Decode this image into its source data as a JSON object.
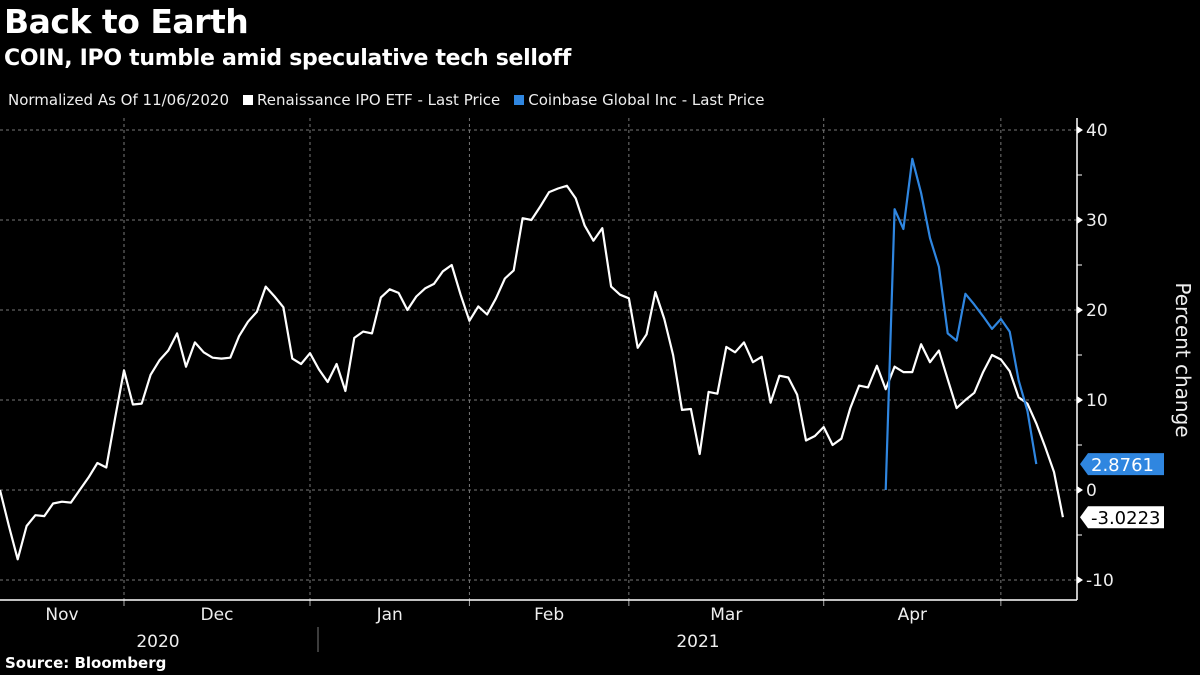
{
  "header": {
    "title": "Back to Earth",
    "subtitle": "COIN, IPO tumble amid speculative tech selloff"
  },
  "legend": {
    "note": "Normalized As Of 11/06/2020",
    "items": [
      {
        "label": "Renaissance IPO ETF - Last Price",
        "color": "#ffffff"
      },
      {
        "label": "Coinbase Global Inc - Last Price",
        "color": "#2f86e0"
      }
    ]
  },
  "source": "Source: Bloomberg",
  "chart_data": {
    "type": "line",
    "title": "Back to Earth",
    "subtitle": "COIN, IPO tumble amid speculative tech selloff",
    "xlabel": "",
    "ylabel": "Percent change",
    "ylim": [
      -12,
      42
    ],
    "yticks": [
      40,
      30,
      20,
      10,
      0,
      -10
    ],
    "grid": true,
    "legend_position": "top-left",
    "x_months": [
      "Nov",
      "Dec",
      "Jan",
      "Feb",
      "Mar",
      "Apr"
    ],
    "x_years": [
      "2020",
      "2021"
    ],
    "x_range_trading_day_index": [
      0,
      119
    ],
    "month_start_index": {
      "Dec": 14,
      "Jan": 35,
      "Feb": 53,
      "Mar": 71,
      "Apr": 93,
      "May": 113
    },
    "series": [
      {
        "name": "Renaissance IPO ETF - Last Price",
        "color": "#ffffff",
        "last_value": -3.0223,
        "values": [
          0,
          -4,
          -7.7,
          -4,
          -2.8,
          -2.9,
          -1.5,
          -1.3,
          -1.4,
          0,
          1.4,
          3,
          2.5,
          8,
          13.3,
          9.5,
          9.6,
          12.8,
          14.4,
          15.5,
          17.4,
          13.7,
          16.4,
          15.3,
          14.7,
          14.6,
          14.7,
          17.1,
          18.7,
          19.8,
          22.6,
          21.5,
          20.3,
          14.6,
          14,
          15.2,
          13.4,
          12,
          14,
          11,
          16.9,
          17.6,
          17.4,
          21.4,
          22.3,
          21.9,
          20,
          21.5,
          22.4,
          22.9,
          24.3,
          25,
          21.7,
          18.8,
          20.4,
          19.5,
          21.3,
          23.5,
          24.4,
          30.2,
          30,
          31.5,
          33.1,
          33.5,
          33.8,
          32.4,
          29.4,
          27.7,
          29.1,
          22.6,
          21.7,
          21.3,
          15.8,
          17.3,
          22,
          19,
          15,
          8.9,
          9,
          4,
          10.9,
          10.7,
          15.9,
          15.3,
          16.4,
          14.2,
          14.8,
          9.7,
          12.7,
          12.5,
          10.6,
          5.5,
          6,
          7,
          5,
          5.7,
          9.1,
          11.6,
          11.4,
          13.8,
          11.2,
          13.7,
          13.1,
          13.1,
          16.2,
          14.2,
          15.5,
          12.3,
          9.1,
          10,
          10.8,
          13.1,
          15,
          14.5,
          13.2,
          10.3,
          9.6,
          7.4,
          4.8,
          2,
          -3.0223
        ]
      },
      {
        "name": "Coinbase Global Inc - Last Price",
        "color": "#2f86e0",
        "last_value": 2.8761,
        "start_index": 100,
        "values": [
          0,
          31.2,
          29,
          36.8,
          33,
          28,
          24.8,
          17.4,
          16.6,
          21.8,
          20.6,
          19.3,
          17.9,
          19,
          17.6,
          12.2,
          8.8,
          2.8761
        ]
      }
    ]
  }
}
